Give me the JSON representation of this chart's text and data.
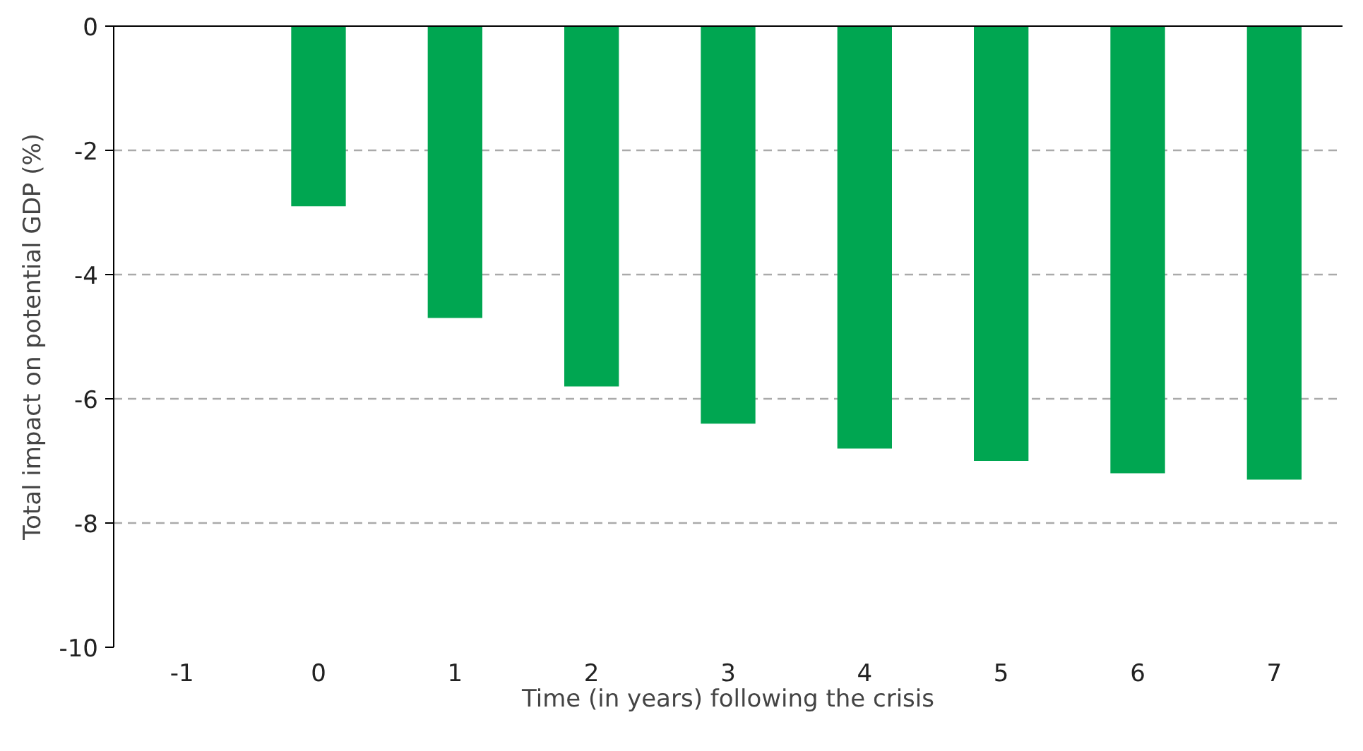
{
  "chart_data": {
    "type": "bar",
    "xlabel": "Time (in years) following the crisis",
    "ylabel": "Total impact on potential GDP (%)",
    "categories": [
      "-1",
      "0",
      "1",
      "2",
      "3",
      "4",
      "5",
      "6",
      "7"
    ],
    "values": [
      null,
      -2.9,
      -4.7,
      -5.8,
      -6.4,
      -6.8,
      -7.0,
      -7.2,
      -7.3
    ],
    "color": "#00a651",
    "ylim": [
      -10,
      0
    ],
    "yticks": [
      0,
      -2,
      -4,
      -6,
      -8,
      -10
    ],
    "grid": "y"
  }
}
